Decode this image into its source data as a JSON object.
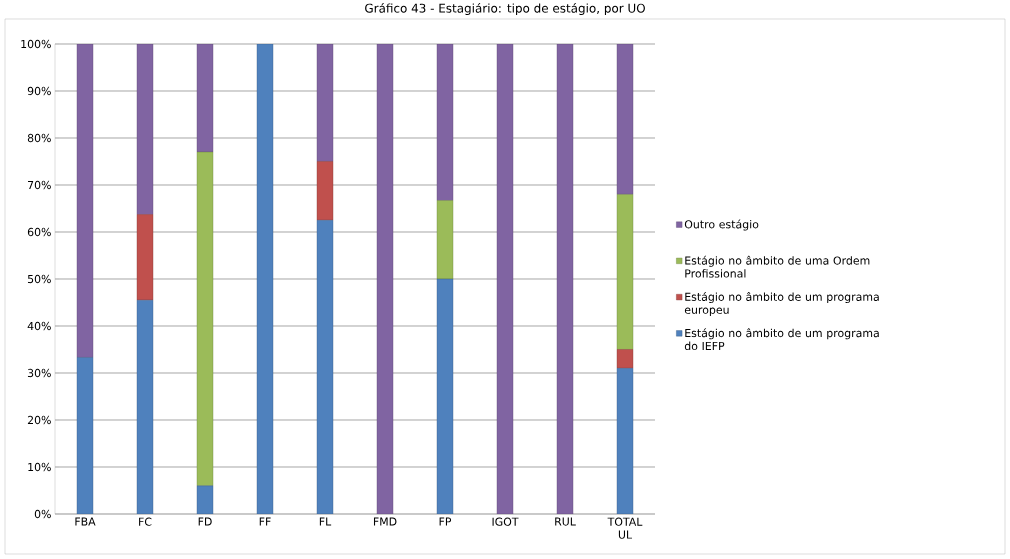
{
  "chart_data": {
    "type": "bar",
    "stacked": true,
    "title": "Gráfico 43 - Estagiário: tipo de estágio, por UO",
    "categories": [
      "FBA",
      "FC",
      "FD",
      "FF",
      "FL",
      "FMD",
      "FP",
      "IGOT",
      "RUL",
      "TOTAL UL"
    ],
    "series": [
      {
        "name": "Estágio no âmbito de um programa do IEFP",
        "color": "#4f81bd",
        "values": [
          33.3,
          45.5,
          6,
          100,
          62.5,
          0,
          50,
          0,
          0,
          31
        ]
      },
      {
        "name": "Estágio no âmbito de um programa europeu",
        "color": "#c0504d",
        "values": [
          0,
          18.2,
          0,
          0,
          12.5,
          0,
          0,
          0,
          0,
          4
        ]
      },
      {
        "name": "Estágio no âmbito de uma Ordem Profissional",
        "color": "#9bbb59",
        "values": [
          0,
          0,
          71,
          0,
          0,
          0,
          16.7,
          0,
          0,
          33
        ]
      },
      {
        "name": "Outro estágio",
        "color": "#8064a2",
        "values": [
          66.7,
          36.3,
          23,
          0,
          25,
          100,
          33.3,
          100,
          100,
          32
        ]
      }
    ],
    "ylim": [
      0,
      100
    ],
    "yticks": [
      {
        "value": 0,
        "label": "0%"
      },
      {
        "value": 10,
        "label": "10%"
      },
      {
        "value": 20,
        "label": "20%"
      },
      {
        "value": 30,
        "label": "30%"
      },
      {
        "value": 40,
        "label": "40%"
      },
      {
        "value": 50,
        "label": "50%"
      },
      {
        "value": 60,
        "label": "60%"
      },
      {
        "value": 70,
        "label": "70%"
      },
      {
        "value": 80,
        "label": "80%"
      },
      {
        "value": 90,
        "label": "90%"
      },
      {
        "value": 100,
        "label": "100%"
      }
    ],
    "grid": "y",
    "legend": "right"
  }
}
